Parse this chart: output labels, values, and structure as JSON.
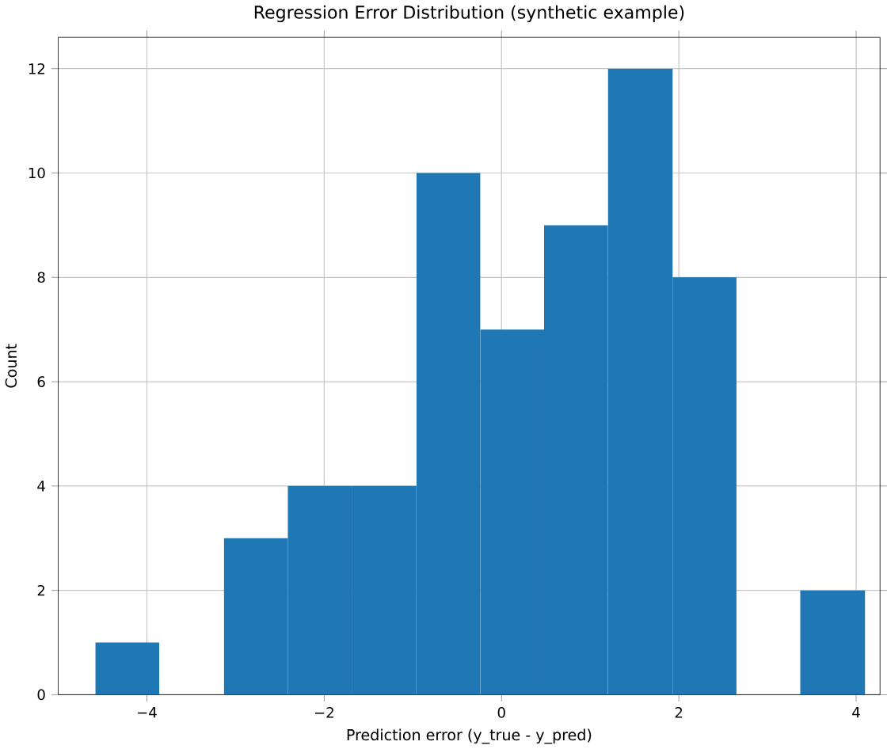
{
  "chart_data": {
    "type": "histogram",
    "title": "Regression Error Distribution (synthetic example)",
    "xlabel": "Prediction error (y_true - y_pred)",
    "ylabel": "Count",
    "bins": [
      -4.58,
      -3.86,
      -3.13,
      -2.41,
      -1.69,
      -0.96,
      -0.24,
      0.48,
      1.2,
      1.93,
      2.65,
      3.37,
      4.1
    ],
    "values": [
      1,
      0,
      3,
      4,
      4,
      10,
      7,
      9,
      12,
      8,
      0,
      2
    ],
    "color": "#1f77b4",
    "xlim": [
      -5.0,
      4.27
    ],
    "ylim": [
      0,
      12.6
    ],
    "xticks": [
      {
        "value": -4,
        "label": "−4"
      },
      {
        "value": -2,
        "label": "−2"
      },
      0,
      2,
      4
    ],
    "yticks": [
      0,
      2,
      4,
      6,
      8,
      10,
      12
    ],
    "grid": true
  }
}
